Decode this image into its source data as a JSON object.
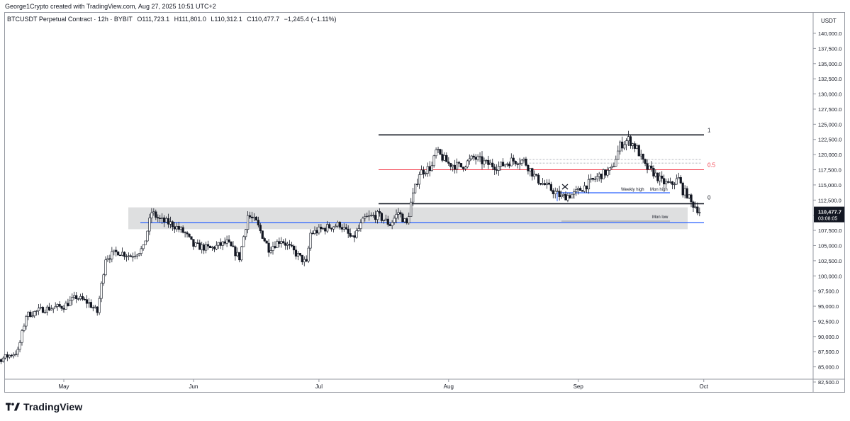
{
  "header": {
    "credit": "George1Crypto created with TradingView.com, Aug 27, 2025 10:51 UTC+2"
  },
  "legend": {
    "symbol": "BTCUSDT Perpetual Contract · 12h · BYBIT",
    "open": "O111,723.1",
    "high": "H111,801.0",
    "low": "L110,312.1",
    "close": "C110,477.7",
    "change": "−1,245.4 (−1.11%)"
  },
  "axis": {
    "currency": "USDT",
    "y_ticks": [
      "140,000.0",
      "137,500.0",
      "135,000.0",
      "132,500.0",
      "130,000.0",
      "127,500.0",
      "125,000.0",
      "122,500.0",
      "120,000.0",
      "117,500.0",
      "115,000.0",
      "112,500.0",
      "110,000.0",
      "107,500.0",
      "105,000.0",
      "102,500.0",
      "100,000.0",
      "97,500.0",
      "95,000.0",
      "92,500.0",
      "90,000.0",
      "87,500.0",
      "85,000.0",
      "82,500.0"
    ],
    "x_ticks": [
      "May",
      "Jun",
      "Jul",
      "Aug",
      "Sep",
      "Oct"
    ],
    "last_price": "110,477.7",
    "countdown": "03:08:05"
  },
  "annotations": {
    "fib_1": "1",
    "fib_05": "0.5",
    "fib_0": "0",
    "weekly_high": "Weekly high",
    "mon_high": "Mon high",
    "mon_low": "Mon low"
  },
  "branding": {
    "logo_text": "TradingView"
  },
  "colors": {
    "up": "#131722",
    "down": "#131722",
    "fib_mid": "#f23645",
    "blue_line": "#2962ff",
    "zone": "#c8c9cc"
  },
  "chart_data": {
    "type": "candlestick",
    "interval": "12h",
    "ylim": [
      83000,
      142500
    ],
    "x_range": [
      "2025-04-09",
      "2025-10-09"
    ],
    "levels": {
      "fib_1": 123250,
      "fib_05": 117500,
      "fib_0": 111900,
      "weekly_high": 113700,
      "mon_high": 113700,
      "mon_low": 108800,
      "blue_support": 108800,
      "range_zone": [
        107700,
        111300
      ]
    },
    "anchors": [
      [
        "2025-04-09",
        84500
      ],
      [
        "2025-04-12",
        85000
      ],
      [
        "2025-04-15",
        86000
      ],
      [
        "2025-04-20",
        87500
      ],
      [
        "2025-04-22",
        93500
      ],
      [
        "2025-04-26",
        94500
      ],
      [
        "2025-05-01",
        95000
      ],
      [
        "2025-05-04",
        96500
      ],
      [
        "2025-05-07",
        95500
      ],
      [
        "2025-05-09",
        94000
      ],
      [
        "2025-05-11",
        103000
      ],
      [
        "2025-05-14",
        104000
      ],
      [
        "2025-05-17",
        103300
      ],
      [
        "2025-05-20",
        104500
      ],
      [
        "2025-05-22",
        110500
      ],
      [
        "2025-05-24",
        109200
      ],
      [
        "2025-05-27",
        108500
      ],
      [
        "2025-05-30",
        107000
      ],
      [
        "2025-06-01",
        105000
      ],
      [
        "2025-06-05",
        104500
      ],
      [
        "2025-06-09",
        105500
      ],
      [
        "2025-06-12",
        103000
      ],
      [
        "2025-06-14",
        110000
      ],
      [
        "2025-06-16",
        108800
      ],
      [
        "2025-06-19",
        104500
      ],
      [
        "2025-06-22",
        106000
      ],
      [
        "2025-06-25",
        104000
      ],
      [
        "2025-06-28",
        102000
      ],
      [
        "2025-06-29",
        107000
      ],
      [
        "2025-07-03",
        108000
      ],
      [
        "2025-07-06",
        108500
      ],
      [
        "2025-07-09",
        106000
      ],
      [
        "2025-07-12",
        109500
      ],
      [
        "2025-07-15",
        110000
      ],
      [
        "2025-07-18",
        108500
      ],
      [
        "2025-07-20",
        110500
      ],
      [
        "2025-07-22",
        108500
      ],
      [
        "2025-07-23",
        112000
      ],
      [
        "2025-07-25",
        117000
      ],
      [
        "2025-07-28",
        118000
      ],
      [
        "2025-07-29",
        120500
      ],
      [
        "2025-08-01",
        118500
      ],
      [
        "2025-08-04",
        118000
      ],
      [
        "2025-08-07",
        119500
      ],
      [
        "2025-08-10",
        118500
      ],
      [
        "2025-08-13",
        118000
      ],
      [
        "2025-08-16",
        119000
      ],
      [
        "2025-08-19",
        119000
      ],
      [
        "2025-08-22",
        116000
      ],
      [
        "2025-08-25",
        114500
      ],
      [
        "2025-08-28",
        113000
      ],
      [
        "2025-08-31",
        113500
      ],
      [
        "2025-09-03",
        115000
      ],
      [
        "2025-09-06",
        116500
      ],
      [
        "2025-09-09",
        117500
      ],
      [
        "2025-09-11",
        121500
      ],
      [
        "2025-09-13",
        122500
      ],
      [
        "2025-09-15",
        121000
      ],
      [
        "2025-09-17",
        118000
      ],
      [
        "2025-09-19",
        117000
      ],
      [
        "2025-09-21",
        115500
      ],
      [
        "2025-09-23",
        115000
      ],
      [
        "2025-09-25",
        116000
      ],
      [
        "2025-09-26",
        114000
      ],
      [
        "2025-09-27",
        113500
      ],
      [
        "2025-09-28",
        112000
      ],
      [
        "2025-09-29",
        111500
      ],
      [
        "2025-09-30",
        110500
      ]
    ]
  }
}
